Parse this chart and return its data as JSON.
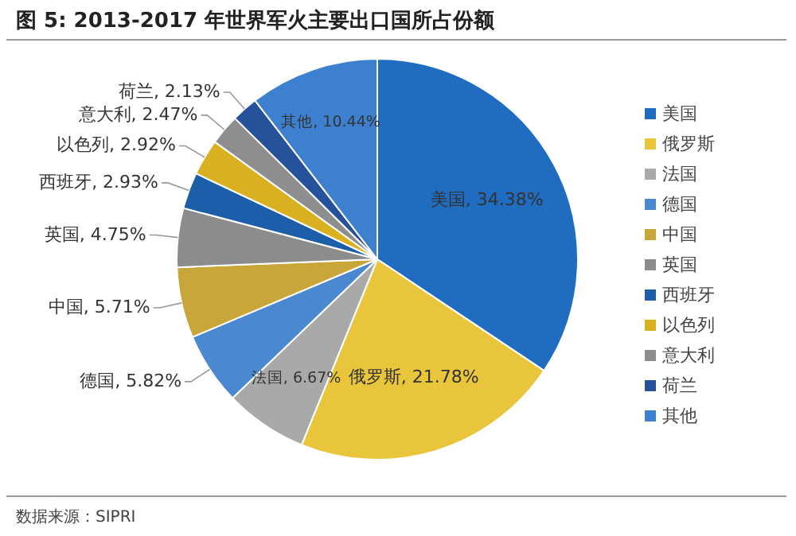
{
  "chart_data": {
    "type": "pie",
    "title": "图 5:  2013-2017 年世界军火主要出口国所占份额",
    "categories": [
      "美国",
      "俄罗斯",
      "法国",
      "德国",
      "中国",
      "英国",
      "西班牙",
      "以色列",
      "意大利",
      "荷兰",
      "其他"
    ],
    "values": [
      34.38,
      21.78,
      6.67,
      5.82,
      5.71,
      4.75,
      2.93,
      2.92,
      2.47,
      2.13,
      10.44
    ],
    "colors": [
      "#1f6cc0",
      "#e9c53c",
      "#a9a9a9",
      "#4a88cf",
      "#c9a63a",
      "#8c8c8c",
      "#1d5ea8",
      "#d8b020",
      "#8e8e8e",
      "#25529a",
      "#3e80d0"
    ],
    "value_labels": [
      "美国, 34.38%",
      "俄罗斯, 21.78%",
      "法国, 6.67%",
      "德国, 5.82%",
      "中国, 5.71%",
      "英国, 4.75%",
      "西班牙, 2.93%",
      "以色列, 2.92%",
      "意大利, 2.47%",
      "荷兰, 2.13%",
      "其他, 10.44%"
    ],
    "legend": "right",
    "annotations": [
      "数据来源：SIPRI"
    ]
  }
}
